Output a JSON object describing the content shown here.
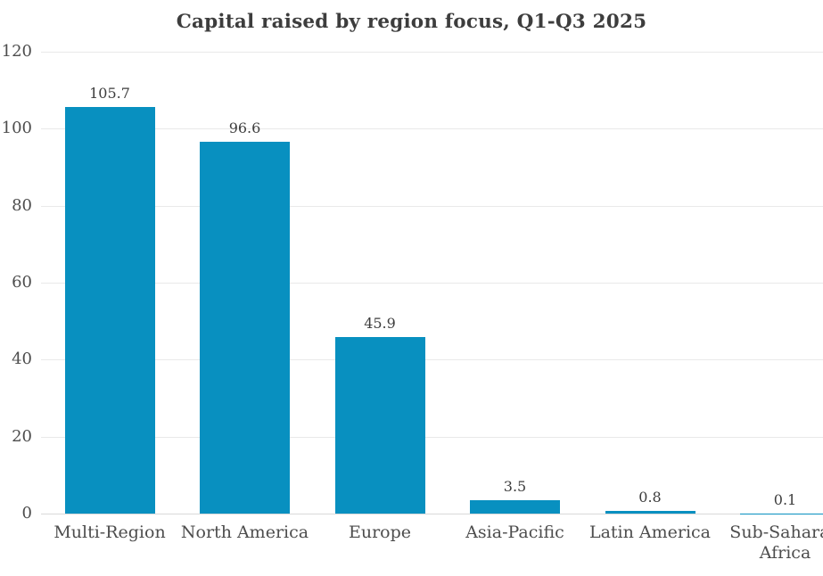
{
  "title": "Capital raised by region focus, Q1-Q3 2025",
  "chart_data": {
    "type": "bar",
    "title": "Capital raised by region focus, Q1-Q3 2025",
    "categories": [
      "Multi-Region",
      "North America",
      "Europe",
      "Asia-Pacific",
      "Latin America",
      "Sub-Saharan Africa"
    ],
    "values": [
      105.7,
      96.6,
      45.9,
      3.5,
      0.8,
      0.1
    ],
    "value_labels": [
      "105.7",
      "96.6",
      "45.9",
      "3.5",
      "0.8",
      "0.1"
    ],
    "xlabel": "",
    "ylabel": "",
    "ylim": [
      0,
      120
    ],
    "yticks": [
      0,
      20,
      40,
      60,
      80,
      100,
      120
    ],
    "ytick_labels": [
      "0",
      "20",
      "40",
      "60",
      "80",
      "100",
      "120"
    ],
    "grid": "horizontal",
    "legend": "none",
    "colors": {
      "bar": "#0890c0",
      "grid": "#e9e9e9",
      "baseline": "#d9d9d9",
      "title_text": "#3d3d3d",
      "value_text": "#3d3d3d",
      "axis_text": "#4d4d4d",
      "background": "#ffffff"
    }
  }
}
